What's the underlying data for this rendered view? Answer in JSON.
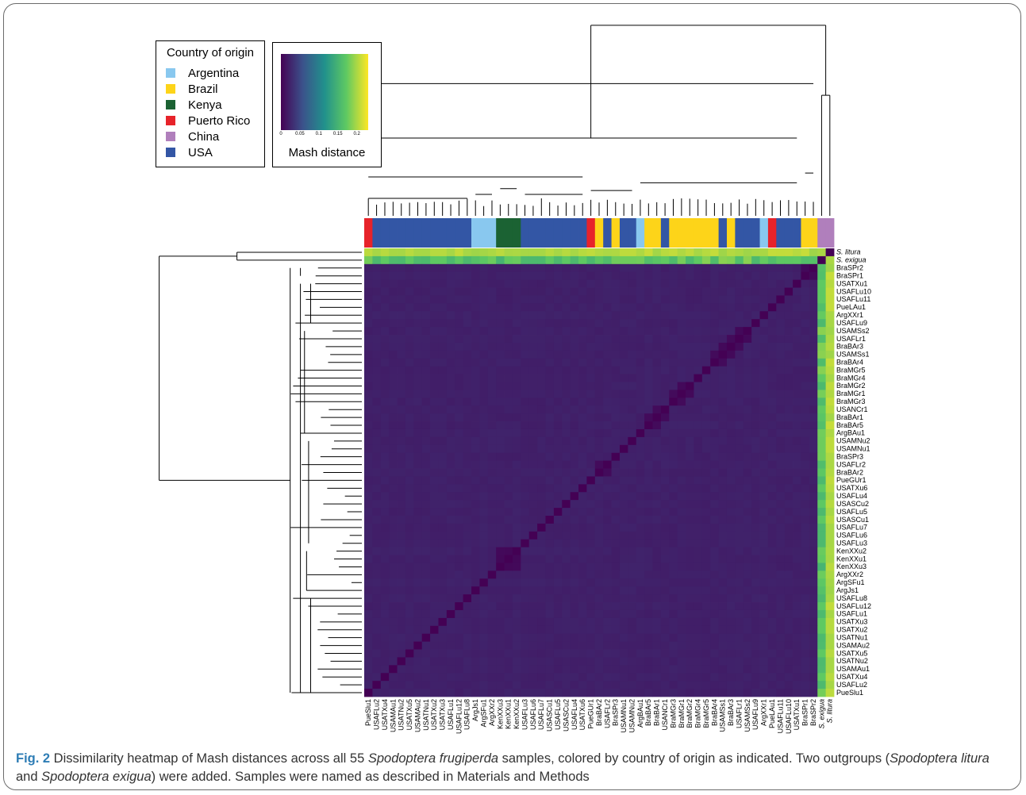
{
  "legend": {
    "title": "Country of origin",
    "items": [
      {
        "label": "Argentina",
        "color": "#89c8ef"
      },
      {
        "label": "Brazil",
        "color": "#fdd419"
      },
      {
        "label": "Kenya",
        "color": "#1b6233"
      },
      {
        "label": "Puerto Rico",
        "color": "#e7232a"
      },
      {
        "label": "China",
        "color": "#b07fbc"
      },
      {
        "label": "USA",
        "color": "#3356a5"
      }
    ]
  },
  "color_scale": {
    "title": "Mash distance",
    "ticks": [
      "0",
      "0.05",
      "0.1",
      "0.15",
      "0.2"
    ],
    "tick_values": [
      0,
      0.05,
      0.1,
      0.15,
      0.2
    ],
    "range": [
      0,
      0.23
    ],
    "palette": "viridis"
  },
  "caption": {
    "label": "Fig. 2",
    "part1": " Dissimilarity heatmap of Mash distances across all 55 ",
    "italic1": "Spodoptera frugiperda",
    "part2": " samples, colored by country of origin as indicated. Two outgroups (",
    "italic2": "Spodoptera litura",
    "part3": " and ",
    "italic3": "Spodoptera exigua",
    "part4": ") were added. Samples were named as described in Materials and Methods"
  },
  "chart_data": {
    "type": "heatmap",
    "title": "",
    "xlabel": "",
    "ylabel": "",
    "value_range": [
      0,
      0.23
    ],
    "column_labels": [
      "PueSlu1",
      "USAFLu2",
      "USATXu4",
      "USAMAu1",
      "USATNu2",
      "USATXu5",
      "USAMAu2",
      "USATNu1",
      "USATXu2",
      "USATXu3",
      "USAFLu1",
      "USAFLu12",
      "USAFLu8",
      "ArgJs1",
      "ArgSFu1",
      "ArgXXr2",
      "KenXXu3",
      "KenXXu1",
      "KenXXu2",
      "USAFLu3",
      "USAFLu6",
      "USAFLu7",
      "USASCu1",
      "USAFLu5",
      "USASCu2",
      "USAFLu4",
      "USATXu6",
      "PueGUr1",
      "BraBAr2",
      "USAFLr2",
      "BraSPr3",
      "USAMNu1",
      "USAMNu2",
      "ArgBAu1",
      "BraBAr5",
      "BraBAr1",
      "USANCr1",
      "BraMGr3",
      "BraMGr1",
      "BraMGr2",
      "BraMGr4",
      "BraMGr5",
      "BraBAr4",
      "USAMSs1",
      "BraBAr3",
      "USAFLr1",
      "USAMSs2",
      "USAFLu9",
      "ArgXXr1",
      "PueLAu1",
      "USAFLu11",
      "USAFLu10",
      "USATXu1",
      "BraSPr1",
      "BraSPr2",
      "S. exigua",
      "S. litura"
    ],
    "row_labels": [
      "S. litura",
      "S. exigua",
      "BraSPr2",
      "BraSPr1",
      "USATXu1",
      "USAFLu10",
      "USAFLu11",
      "PueLAu1",
      "ArgXXr1",
      "USAFLu9",
      "USAMSs2",
      "USAFLr1",
      "BraBAr3",
      "USAMSs1",
      "BraBAr4",
      "BraMGr5",
      "BraMGr4",
      "BraMGr2",
      "BraMGr1",
      "BraMGr3",
      "USANCr1",
      "BraBAr1",
      "BraBAr5",
      "ArgBAu1",
      "USAMNu2",
      "USAMNu1",
      "BraSPr3",
      "USAFLr2",
      "BraBAr2",
      "PueGUr1",
      "USATXu6",
      "USAFLu4",
      "USASCu2",
      "USAFLu5",
      "USASCu1",
      "USAFLu7",
      "USAFLu6",
      "USAFLu3",
      "KenXXu2",
      "KenXXu1",
      "KenXXu3",
      "ArgXXr2",
      "ArgSFu1",
      "ArgJs1",
      "USAFLu8",
      "USAFLu12",
      "USAFLu1",
      "USATXu3",
      "USATXu2",
      "USATNu1",
      "USAMAu2",
      "USATXu5",
      "USATNu2",
      "USAMAu1",
      "USATXu4",
      "USAFLu2",
      "PueSlu1"
    ],
    "country_bar": [
      "Puerto Rico",
      "USA",
      "USA",
      "USA",
      "USA",
      "USA",
      "USA",
      "USA",
      "USA",
      "USA",
      "USA",
      "USA",
      "USA",
      "Argentina",
      "Argentina",
      "Argentina",
      "Kenya",
      "Kenya",
      "Kenya",
      "USA",
      "USA",
      "USA",
      "USA",
      "USA",
      "USA",
      "USA",
      "USA",
      "Puerto Rico",
      "Brazil",
      "USA",
      "Brazil",
      "USA",
      "USA",
      "Argentina",
      "Brazil",
      "Brazil",
      "USA",
      "Brazil",
      "Brazil",
      "Brazil",
      "Brazil",
      "Brazil",
      "Brazil",
      "USA",
      "Brazil",
      "USA",
      "USA",
      "USA",
      "Argentina",
      "Puerto Rico",
      "USA",
      "USA",
      "USA",
      "Brazil",
      "Brazil",
      "China",
      "China"
    ],
    "outgroup_distance": {
      "S. litura_vs_S. exigua": 0.2,
      "S. litura_vs_frugiperda": 0.21,
      "S. exigua_vs_frugiperda": 0.19
    },
    "ingroup_distance_baseline": 0.02,
    "diagonal_distance": 0.0,
    "close_pairs": [
      {
        "a": "KenXXu1",
        "b": "KenXXu2",
        "distance": 0.005
      },
      {
        "a": "KenXXu1",
        "b": "KenXXu3",
        "distance": 0.005
      },
      {
        "a": "KenXXu2",
        "b": "KenXXu3",
        "distance": 0.006
      },
      {
        "a": "USAFLr1",
        "b": "USAMSs2",
        "distance": 0.006
      },
      {
        "a": "USAFLr1",
        "b": "BraBAr3",
        "distance": 0.007
      },
      {
        "a": "BraBAr3",
        "b": "USAMSs1",
        "distance": 0.006
      },
      {
        "a": "BraBAr4",
        "b": "USAMSs1",
        "distance": 0.007
      },
      {
        "a": "BraMGr1",
        "b": "BraMGr2",
        "distance": 0.006
      },
      {
        "a": "BraMGr1",
        "b": "BraMGr3",
        "distance": 0.007
      },
      {
        "a": "USANCr1",
        "b": "BraBAr1",
        "distance": 0.007
      },
      {
        "a": "BraBAr1",
        "b": "BraBAr5",
        "distance": 0.007
      },
      {
        "a": "BraBAr2",
        "b": "USAFLr2",
        "distance": 0.007
      },
      {
        "a": "BraSPr1",
        "b": "BraSPr2",
        "distance": 0.006
      }
    ]
  }
}
